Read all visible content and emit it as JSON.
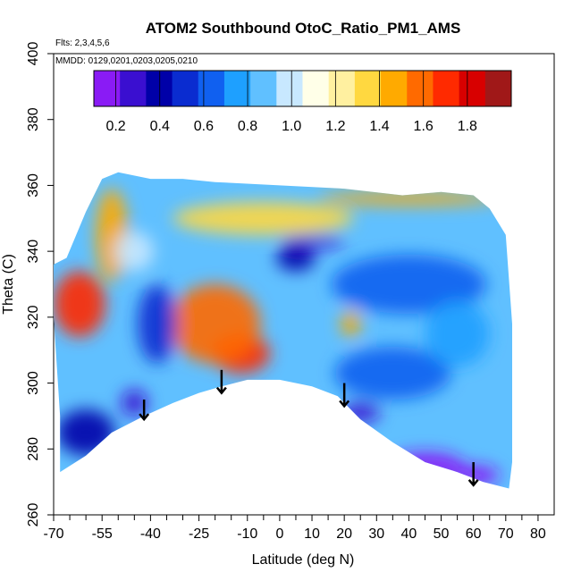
{
  "chart_data": {
    "type": "heatmap",
    "title": "ATOM2 Southbound OtoC_Ratio_PM1_AMS",
    "annotations": {
      "flights": "Flts: 2,3,4,5,6",
      "dates": "MMDD: 0129,0201,0203,0205,0210"
    },
    "xlabel": "Latitude (deg N)",
    "ylabel": "Theta (C)",
    "xlim": [
      -70,
      85
    ],
    "ylim": [
      260,
      400
    ],
    "x_ticks_major": [
      -70,
      -55,
      -40,
      -25,
      -10,
      0,
      10,
      20,
      30,
      40,
      50,
      60,
      70,
      80
    ],
    "x_ticks_minor": [
      -65,
      -60,
      -50,
      -45,
      -35,
      -30,
      -20,
      -15,
      -5,
      5,
      15,
      25,
      35,
      45,
      55,
      65,
      75
    ],
    "y_ticks": [
      260,
      280,
      300,
      320,
      340,
      360,
      380,
      400
    ],
    "colorbar": {
      "min": 0.1,
      "max": 2.0,
      "ticks": [
        0.2,
        0.4,
        0.6,
        0.8,
        1.0,
        1.2,
        1.4,
        1.6,
        1.8
      ],
      "tick_labels": [
        "0.2",
        "0.4",
        "0.6",
        "0.8",
        "1.0",
        "1.2",
        "1.4",
        "1.6",
        "1.8"
      ],
      "colors": [
        "#8a1bf5",
        "#3a0fd0",
        "#0000a8",
        "#0a2cd0",
        "#1060f0",
        "#1ea0ff",
        "#60c0ff",
        "#c8e8ff",
        "#ffffe8",
        "#fff0a0",
        "#ffd840",
        "#ffaa00",
        "#ff6a00",
        "#ff2a00",
        "#d80000",
        "#a01818"
      ]
    },
    "domain_outline": [
      [
        -68,
        273
      ],
      [
        -60,
        278
      ],
      [
        -52,
        285
      ],
      [
        -42,
        290
      ],
      [
        -33,
        294
      ],
      [
        -25,
        297
      ],
      [
        -18,
        299
      ],
      [
        -10,
        301
      ],
      [
        0,
        301
      ],
      [
        10,
        299
      ],
      [
        18,
        296
      ],
      [
        25,
        289
      ],
      [
        35,
        282
      ],
      [
        45,
        276
      ],
      [
        55,
        273
      ],
      [
        63,
        270
      ],
      [
        71,
        268
      ],
      [
        72,
        276
      ],
      [
        72,
        318
      ],
      [
        70,
        345
      ],
      [
        65,
        353
      ],
      [
        60,
        357
      ],
      [
        50,
        358
      ],
      [
        38,
        357
      ],
      [
        20,
        359
      ],
      [
        0,
        360
      ],
      [
        -20,
        361
      ],
      [
        -30,
        362
      ],
      [
        -40,
        362
      ],
      [
        -50,
        364
      ],
      [
        -55,
        362
      ],
      [
        -60,
        352
      ],
      [
        -66,
        338
      ],
      [
        -70,
        336
      ],
      [
        -70,
        320
      ],
      [
        -68,
        290
      ]
    ],
    "blobs": [
      {
        "x": -12,
        "y": 309,
        "rx": 9,
        "ry": 6,
        "value": 1.75
      },
      {
        "x": -20,
        "y": 318,
        "rx": 14,
        "ry": 12,
        "value": 1.55
      },
      {
        "x": -62,
        "y": 324,
        "rx": 8,
        "ry": 10,
        "value": 1.75
      },
      {
        "x": -52,
        "y": 345,
        "rx": 5,
        "ry": 14,
        "value": 1.5
      },
      {
        "x": -5,
        "y": 350,
        "rx": 28,
        "ry": 5,
        "value": 1.35
      },
      {
        "x": 40,
        "y": 356,
        "rx": 28,
        "ry": 2,
        "value": 1.5
      },
      {
        "x": 22,
        "y": 318,
        "rx": 3,
        "ry": 4,
        "value": 1.5
      },
      {
        "x": -38,
        "y": 318,
        "rx": 6,
        "ry": 12,
        "value": 0.55
      },
      {
        "x": -60,
        "y": 285,
        "rx": 9,
        "ry": 7,
        "value": 0.35
      },
      {
        "x": -45,
        "y": 294,
        "rx": 4,
        "ry": 4,
        "value": 0.25
      },
      {
        "x": 45,
        "y": 275,
        "rx": 12,
        "ry": 4,
        "value": 0.15
      },
      {
        "x": 60,
        "y": 272,
        "rx": 8,
        "ry": 3,
        "value": 0.2
      },
      {
        "x": 25,
        "y": 291,
        "rx": 6,
        "ry": 3,
        "value": 0.3
      },
      {
        "x": 35,
        "y": 303,
        "rx": 18,
        "ry": 8,
        "value": 0.6
      },
      {
        "x": 5,
        "y": 338,
        "rx": 6,
        "ry": 4,
        "value": 0.4
      },
      {
        "x": 10,
        "y": 343,
        "rx": 10,
        "ry": 2,
        "value": 0.3
      },
      {
        "x": 40,
        "y": 330,
        "rx": 24,
        "ry": 9,
        "value": 0.65
      },
      {
        "x": 55,
        "y": 315,
        "rx": 10,
        "ry": 10,
        "value": 0.75
      },
      {
        "x": -45,
        "y": 340,
        "rx": 6,
        "ry": 6,
        "value": 1.0
      }
    ],
    "arrows": [
      {
        "x": -42,
        "y_top": 295,
        "y_bottom": 289
      },
      {
        "x": -18,
        "y_top": 304,
        "y_bottom": 297
      },
      {
        "x": 20,
        "y_top": 300,
        "y_bottom": 293
      },
      {
        "x": 60,
        "y_top": 276,
        "y_bottom": 269
      }
    ]
  }
}
